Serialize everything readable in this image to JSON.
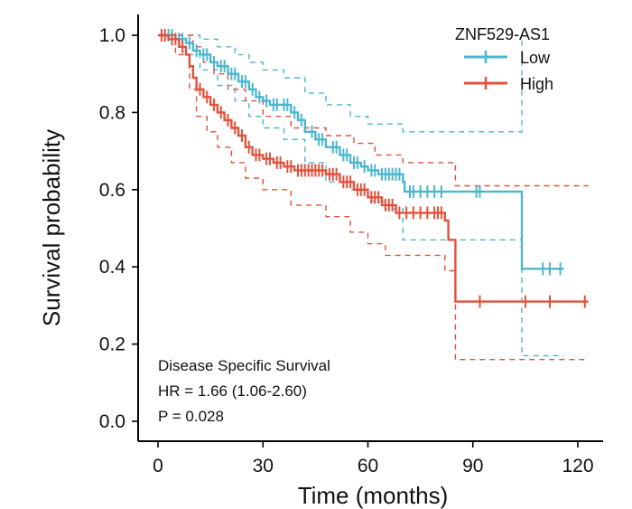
{
  "chart_data": {
    "type": "line",
    "subtype": "kaplan-meier",
    "xlabel": "Time (months)",
    "ylabel": "Survival probability",
    "xlim": [
      -3,
      126
    ],
    "ylim": [
      -0.02,
      1.05
    ],
    "xticks": [
      0,
      30,
      60,
      90,
      120
    ],
    "xtick_labels": [
      "0",
      "30",
      "60",
      "90",
      "120"
    ],
    "yticks": [
      0.0,
      0.2,
      0.4,
      0.6,
      0.8,
      1.0
    ],
    "ytick_labels": [
      "0.0",
      "0.2",
      "0.4",
      "0.6",
      "0.8",
      "1.0"
    ],
    "legend": {
      "title": "ZNF529-AS1",
      "position": "top-right"
    },
    "annotations": {
      "line1": "Disease Specific Survival",
      "line2": "HR = 1.66 (1.06-2.60)",
      "line3": "P = 0.028"
    },
    "series": [
      {
        "name": "Low",
        "color": "#4db6cf",
        "steps": [
          [
            0,
            1.0
          ],
          [
            5,
            0.99
          ],
          [
            8,
            0.98
          ],
          [
            10,
            0.96
          ],
          [
            12,
            0.95
          ],
          [
            15,
            0.93
          ],
          [
            17,
            0.92
          ],
          [
            20,
            0.9
          ],
          [
            23,
            0.88
          ],
          [
            26,
            0.86
          ],
          [
            28,
            0.84
          ],
          [
            30,
            0.83
          ],
          [
            32,
            0.82
          ],
          [
            38,
            0.8
          ],
          [
            40,
            0.78
          ],
          [
            42,
            0.75
          ],
          [
            45,
            0.73
          ],
          [
            48,
            0.71
          ],
          [
            52,
            0.69
          ],
          [
            55,
            0.67
          ],
          [
            58,
            0.66
          ],
          [
            60,
            0.65
          ],
          [
            63,
            0.64
          ],
          [
            70,
            0.62
          ],
          [
            70.5,
            0.595
          ],
          [
            104,
            0.395
          ],
          [
            116,
            0.395
          ]
        ],
        "censor_times": [
          3,
          4,
          6,
          7,
          9,
          11,
          13,
          14,
          16,
          18,
          19,
          21,
          22,
          24,
          25,
          27,
          29,
          31,
          33,
          34,
          36,
          37,
          39,
          41,
          44,
          46,
          47,
          50,
          51,
          53,
          54,
          56,
          57,
          59,
          61,
          62,
          64,
          65,
          66,
          67,
          68,
          69,
          72,
          73,
          75,
          77,
          79,
          81,
          91,
          92,
          110,
          112,
          115
        ],
        "ci_upper": [
          [
            0,
            1.0
          ],
          [
            10,
            1.0
          ],
          [
            12,
            0.99
          ],
          [
            17,
            0.97
          ],
          [
            22,
            0.95
          ],
          [
            26,
            0.93
          ],
          [
            30,
            0.91
          ],
          [
            36,
            0.89
          ],
          [
            42,
            0.85
          ],
          [
            48,
            0.82
          ],
          [
            55,
            0.79
          ],
          [
            60,
            0.77
          ],
          [
            70,
            0.75
          ],
          [
            104,
            0.75
          ],
          [
            104,
            1.0
          ]
        ],
        "ci_lower": [
          [
            0,
            1.0
          ],
          [
            8,
            0.95
          ],
          [
            12,
            0.91
          ],
          [
            17,
            0.87
          ],
          [
            22,
            0.83
          ],
          [
            26,
            0.79
          ],
          [
            30,
            0.76
          ],
          [
            36,
            0.73
          ],
          [
            42,
            0.67
          ],
          [
            48,
            0.62
          ],
          [
            55,
            0.6
          ],
          [
            60,
            0.57
          ],
          [
            65,
            0.55
          ],
          [
            70,
            0.47
          ],
          [
            104,
            0.47
          ],
          [
            104,
            0.17
          ],
          [
            116,
            0.17
          ]
        ]
      },
      {
        "name": "High",
        "color": "#e2513b",
        "steps": [
          [
            0,
            1.0
          ],
          [
            3,
            0.99
          ],
          [
            6,
            0.97
          ],
          [
            8,
            0.95
          ],
          [
            9,
            0.92
          ],
          [
            10,
            0.89
          ],
          [
            11,
            0.86
          ],
          [
            13,
            0.84
          ],
          [
            15,
            0.82
          ],
          [
            17,
            0.8
          ],
          [
            19,
            0.78
          ],
          [
            21,
            0.76
          ],
          [
            23,
            0.74
          ],
          [
            25,
            0.71
          ],
          [
            27,
            0.69
          ],
          [
            30,
            0.68
          ],
          [
            33,
            0.67
          ],
          [
            36,
            0.66
          ],
          [
            39,
            0.65
          ],
          [
            48,
            0.64
          ],
          [
            52,
            0.62
          ],
          [
            56,
            0.6
          ],
          [
            60,
            0.58
          ],
          [
            64,
            0.56
          ],
          [
            68,
            0.54
          ],
          [
            82,
            0.52
          ],
          [
            83,
            0.47
          ],
          [
            85,
            0.31
          ],
          [
            123,
            0.31
          ]
        ],
        "censor_times": [
          1,
          2,
          4,
          5,
          7,
          12,
          14,
          16,
          18,
          20,
          22,
          24,
          26,
          28,
          29,
          31,
          32,
          34,
          35,
          37,
          38,
          40,
          41,
          42,
          43,
          44,
          45,
          46,
          47,
          49,
          50,
          51,
          53,
          54,
          55,
          57,
          58,
          59,
          61,
          62,
          63,
          65,
          66,
          67,
          69,
          71,
          73,
          75,
          77,
          79,
          80,
          81,
          92,
          105,
          112,
          122
        ],
        "ci_upper": [
          [
            0,
            1.0
          ],
          [
            8,
            1.0
          ],
          [
            10,
            0.97
          ],
          [
            13,
            0.93
          ],
          [
            16,
            0.9
          ],
          [
            20,
            0.86
          ],
          [
            25,
            0.83
          ],
          [
            30,
            0.79
          ],
          [
            38,
            0.76
          ],
          [
            48,
            0.74
          ],
          [
            56,
            0.72
          ],
          [
            62,
            0.69
          ],
          [
            70,
            0.67
          ],
          [
            85,
            0.67
          ],
          [
            85,
            0.61
          ],
          [
            123,
            0.61
          ]
        ],
        "ci_lower": [
          [
            0,
            1.0
          ],
          [
            5,
            0.95
          ],
          [
            9,
            0.86
          ],
          [
            11,
            0.79
          ],
          [
            14,
            0.75
          ],
          [
            17,
            0.71
          ],
          [
            21,
            0.67
          ],
          [
            25,
            0.63
          ],
          [
            30,
            0.6
          ],
          [
            38,
            0.56
          ],
          [
            48,
            0.53
          ],
          [
            55,
            0.49
          ],
          [
            60,
            0.46
          ],
          [
            65,
            0.43
          ],
          [
            70,
            0.43
          ],
          [
            82,
            0.43
          ],
          [
            82,
            0.39
          ],
          [
            85,
            0.16
          ],
          [
            123,
            0.16
          ]
        ]
      }
    ]
  }
}
